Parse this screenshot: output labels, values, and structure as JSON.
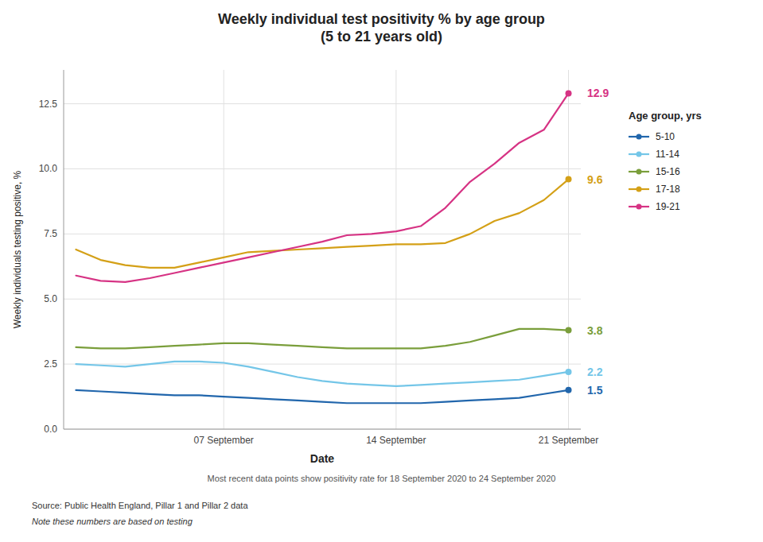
{
  "chart_data": {
    "type": "line",
    "title": "Weekly individual test positivity % by age group\n(5 to 21 years old)",
    "xlabel": "Date",
    "ylabel": "Weekly individuals testing positive, %",
    "subtitle": "Most recent data points show positivity rate for 18 September 2020 to 24 September 2020",
    "annotations": [
      "Source: Public Health England, Pillar 1 and Pillar 2 data",
      "Note these numbers are based on testing"
    ],
    "legend_title": "Age group, yrs",
    "legend": "right",
    "grid": true,
    "ylim": [
      0.0,
      13.8
    ],
    "yticks": [
      {
        "value": 0.0,
        "label": "0.0"
      },
      2.5,
      {
        "value": 5.0,
        "label": "5.0"
      },
      7.5,
      {
        "value": 10.0,
        "label": "10.0"
      },
      12.5
    ],
    "categories": [
      null,
      null,
      null,
      null,
      null,
      null,
      "07 September",
      null,
      null,
      null,
      null,
      null,
      null,
      "14 September",
      null,
      null,
      null,
      null,
      null,
      null,
      "21 September"
    ],
    "series": [
      {
        "name": "5-10",
        "color": "#2166ac",
        "values": [
          1.5,
          1.45,
          1.4,
          1.35,
          1.3,
          1.3,
          1.25,
          1.2,
          1.15,
          1.1,
          1.05,
          1.0,
          1.0,
          1.0,
          1.0,
          1.05,
          1.1,
          1.15,
          1.2,
          1.35,
          1.5
        ],
        "value_labels": [
          null,
          null,
          null,
          null,
          null,
          null,
          null,
          null,
          null,
          null,
          null,
          null,
          null,
          null,
          null,
          null,
          null,
          null,
          null,
          null,
          "1.5"
        ]
      },
      {
        "name": "11-14",
        "color": "#74c6e8",
        "values": [
          2.5,
          2.45,
          2.4,
          2.5,
          2.6,
          2.6,
          2.55,
          2.4,
          2.2,
          2.0,
          1.85,
          1.75,
          1.7,
          1.65,
          1.7,
          1.75,
          1.8,
          1.85,
          1.9,
          2.05,
          2.2
        ],
        "value_labels": [
          null,
          null,
          null,
          null,
          null,
          null,
          null,
          null,
          null,
          null,
          null,
          null,
          null,
          null,
          null,
          null,
          null,
          null,
          null,
          null,
          "2.2"
        ]
      },
      {
        "name": "15-16",
        "color": "#7a9e3b",
        "values": [
          3.15,
          3.1,
          3.1,
          3.15,
          3.2,
          3.25,
          3.3,
          3.3,
          3.25,
          3.2,
          3.15,
          3.1,
          3.1,
          3.1,
          3.1,
          3.2,
          3.35,
          3.6,
          3.85,
          3.85,
          3.8
        ],
        "value_labels": [
          null,
          null,
          null,
          null,
          null,
          null,
          null,
          null,
          null,
          null,
          null,
          null,
          null,
          null,
          null,
          null,
          null,
          null,
          null,
          null,
          "3.8"
        ]
      },
      {
        "name": "17-18",
        "color": "#d4a017",
        "values": [
          6.9,
          6.5,
          6.3,
          6.2,
          6.2,
          6.4,
          6.6,
          6.8,
          6.85,
          6.9,
          6.95,
          7.0,
          7.05,
          7.1,
          7.1,
          7.15,
          7.5,
          8.0,
          8.3,
          8.8,
          9.6
        ],
        "value_labels": [
          null,
          null,
          null,
          null,
          null,
          null,
          null,
          null,
          null,
          null,
          null,
          null,
          null,
          null,
          null,
          null,
          null,
          null,
          null,
          null,
          "9.6"
        ]
      },
      {
        "name": "19-21",
        "color": "#d63384",
        "values": [
          5.9,
          5.7,
          5.65,
          5.8,
          6.0,
          6.2,
          6.4,
          6.6,
          6.8,
          7.0,
          7.2,
          7.45,
          7.5,
          7.6,
          7.8,
          8.5,
          9.5,
          10.2,
          11.0,
          11.5,
          12.9
        ],
        "value_labels": [
          null,
          null,
          null,
          null,
          null,
          null,
          null,
          null,
          null,
          null,
          null,
          null,
          null,
          null,
          null,
          null,
          null,
          null,
          null,
          null,
          "12.9"
        ]
      }
    ]
  }
}
